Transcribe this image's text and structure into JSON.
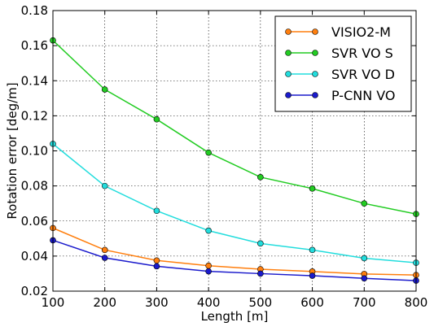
{
  "chart_data": {
    "type": "line",
    "title": "",
    "xlabel": "Length [m]",
    "ylabel": "Rotation error [deg/m]",
    "xlim": [
      100,
      800
    ],
    "ylim": [
      0.02,
      0.18
    ],
    "xticks": [
      "100",
      "200",
      "300",
      "400",
      "500",
      "600",
      "700",
      "800"
    ],
    "yticks": [
      "0.02",
      "0.04",
      "0.06",
      "0.08",
      "0.10",
      "0.12",
      "0.14",
      "0.16",
      "0.18"
    ],
    "grid": true,
    "legend_position": "top-right",
    "x": [
      100,
      200,
      300,
      400,
      500,
      600,
      700,
      800
    ],
    "series": [
      {
        "name": "VISIO2-M",
        "color": "#ff7f0e",
        "values": [
          0.056,
          0.0435,
          0.0375,
          0.0345,
          0.0325,
          0.0312,
          0.0298,
          0.0292
        ]
      },
      {
        "name": "SVR VO S",
        "color": "#22cc22",
        "values": [
          0.163,
          0.135,
          0.118,
          0.099,
          0.085,
          0.0785,
          0.07,
          0.064
        ]
      },
      {
        "name": "SVR VO D",
        "color": "#22dddd",
        "values": [
          0.104,
          0.08,
          0.0658,
          0.0545,
          0.0472,
          0.0435,
          0.0388,
          0.0362
        ]
      },
      {
        "name": "P-CNN VO",
        "color": "#1a1acc",
        "values": [
          0.049,
          0.039,
          0.0342,
          0.0313,
          0.03,
          0.0288,
          0.0273,
          0.026
        ]
      }
    ]
  }
}
